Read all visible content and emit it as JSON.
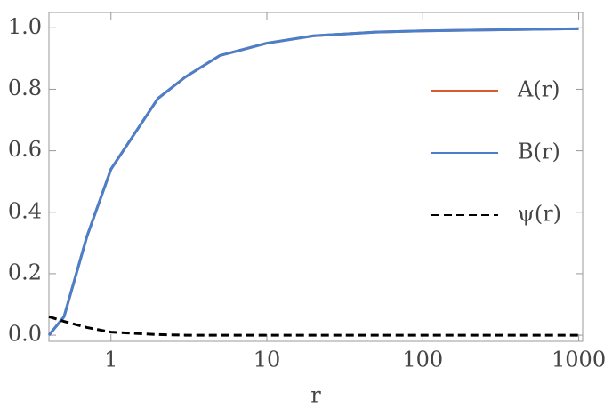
{
  "chart_data": {
    "type": "line",
    "xscale": "log",
    "xlabel": "r",
    "x": [
      0.4,
      0.5,
      0.7,
      1,
      2,
      3,
      5,
      10,
      20,
      50,
      100,
      1000
    ],
    "series": [
      {
        "name": "A(r)",
        "color": "#d95a2b",
        "dash": false,
        "values": [
          0.0,
          0.06,
          0.32,
          0.54,
          0.77,
          0.84,
          0.91,
          0.95,
          0.974,
          0.986,
          0.99,
          0.997
        ]
      },
      {
        "name": "B(r)",
        "color": "#4a7fcb",
        "dash": false,
        "values": [
          0.0,
          0.06,
          0.32,
          0.54,
          0.77,
          0.84,
          0.91,
          0.95,
          0.974,
          0.986,
          0.99,
          0.997
        ]
      },
      {
        "name": "ψ(r)",
        "color": "#000000",
        "dash": true,
        "values": [
          0.06,
          0.045,
          0.025,
          0.01,
          0.002,
          0.0,
          0.0,
          0.0,
          0.0,
          0.0,
          0.0,
          0.0
        ]
      }
    ],
    "xlim": [
      0.4,
      1060
    ],
    "ylim": [
      -0.02,
      1.05
    ],
    "xticks": [
      1,
      10,
      100,
      1000
    ],
    "yticks": [
      {
        "value": 0,
        "label": "0.0"
      },
      0.2,
      0.4,
      0.6,
      0.8,
      {
        "value": 1,
        "label": "1.0"
      }
    ],
    "legend": "right"
  }
}
